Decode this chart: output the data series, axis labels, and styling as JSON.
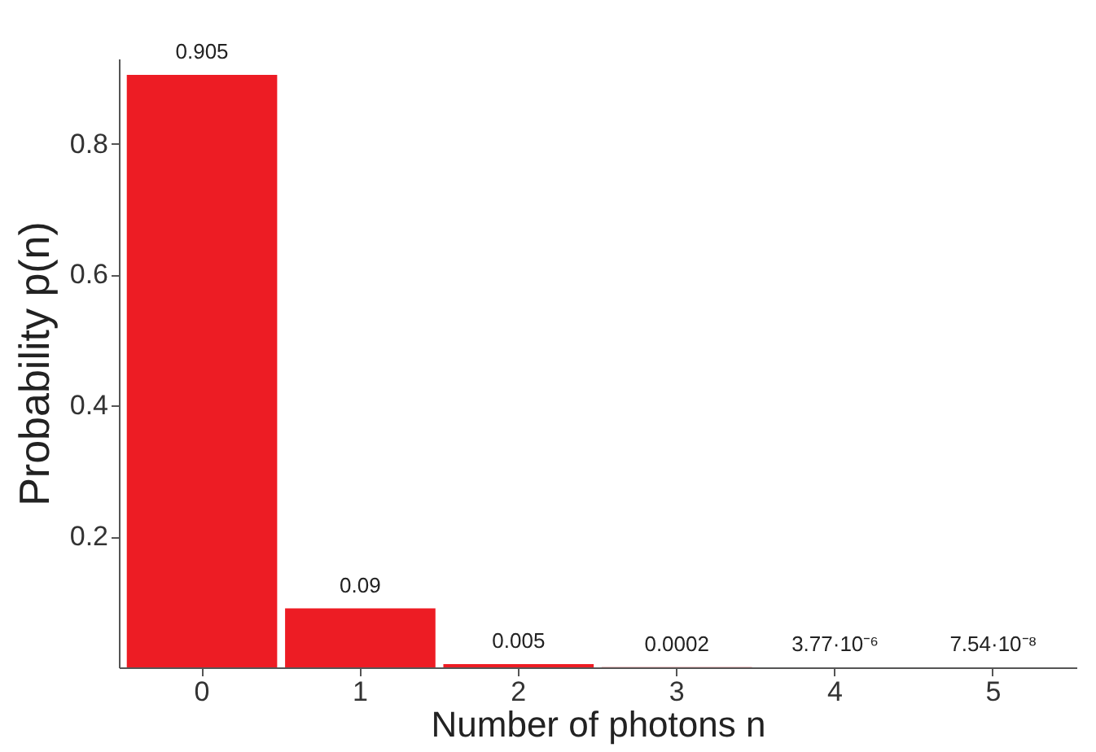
{
  "chart_data": {
    "type": "bar",
    "xlabel": "Number of photons n",
    "ylabel": "Probability p(n)",
    "categories": [
      "0",
      "1",
      "2",
      "3",
      "4",
      "5"
    ],
    "values": [
      0.905,
      0.09,
      0.005,
      0.0002,
      3.77e-06,
      7.54e-08
    ],
    "value_labels": [
      "0.905",
      "0.09",
      "0.005",
      "0.0002",
      "3.77·10⁻⁶",
      "7.54·10⁻⁸"
    ],
    "color": "#ed1c24",
    "ylim": [
      0,
      0.93
    ],
    "yticks": [
      0.2,
      0.4,
      0.6,
      0.8
    ],
    "grid": false
  }
}
